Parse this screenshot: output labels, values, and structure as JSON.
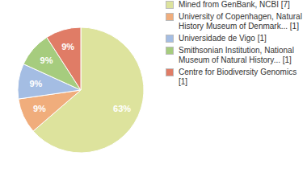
{
  "chart_data": {
    "type": "pie",
    "categories": [
      "Mined from GenBank, NCBI [7]",
      "University of Copenhagen, Natural History Museum of Denmark... [1]",
      "Universidade de Vigo [1]",
      "Smithsonian Institution, National Museum of Natural History... [1]",
      "Centre for Biodiversity Genomics [1]"
    ],
    "values": [
      63,
      9,
      9,
      9,
      9
    ],
    "value_labels": [
      "63%",
      "9%",
      "9%",
      "9%",
      "9%"
    ],
    "colors": [
      "#dde39d",
      "#f0ad7c",
      "#a4bde3",
      "#a6cc7e",
      "#e07c66"
    ],
    "data_labels": true,
    "legend": "right"
  }
}
